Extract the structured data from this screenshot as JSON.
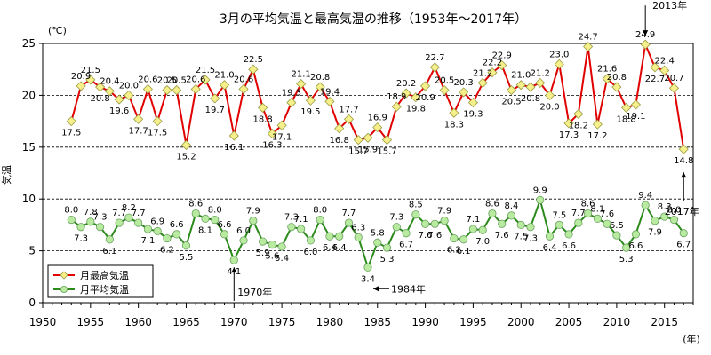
{
  "chart_data": {
    "type": "line",
    "title": "3月の平均気温と最高気温の推移（1953年～2017年）",
    "ylabel": "気温",
    "yunit": "(℃)",
    "xunit": "(年)",
    "xlim": [
      1950,
      2018
    ],
    "ylim": [
      0,
      25
    ],
    "xticks": [
      1950,
      1955,
      1960,
      1965,
      1970,
      1975,
      1980,
      1985,
      1990,
      1995,
      2000,
      2005,
      2010,
      2015
    ],
    "yticks": [
      0,
      5,
      10,
      15,
      20,
      25
    ],
    "grid": "dashed horizontal at 5, 10, 15, 20",
    "legend_position": "bottom-left",
    "x": [
      1953,
      1954,
      1955,
      1956,
      1957,
      1958,
      1959,
      1960,
      1961,
      1962,
      1963,
      1964,
      1965,
      1966,
      1967,
      1968,
      1969,
      1970,
      1971,
      1972,
      1973,
      1974,
      1975,
      1976,
      1977,
      1978,
      1979,
      1980,
      1981,
      1982,
      1983,
      1984,
      1985,
      1986,
      1987,
      1988,
      1989,
      1990,
      1991,
      1992,
      1993,
      1994,
      1995,
      1996,
      1997,
      1998,
      1999,
      2000,
      2001,
      2002,
      2003,
      2004,
      2005,
      2006,
      2007,
      2008,
      2009,
      2010,
      2011,
      2012,
      2013,
      2014,
      2015,
      2016,
      2017
    ],
    "series": [
      {
        "name": "月最高気温",
        "color": "#e00000",
        "marker_fill": "#f5f08c",
        "marker": "diamond",
        "values": [
          17.5,
          20.9,
          21.5,
          20.8,
          20.4,
          19.6,
          20.0,
          17.7,
          20.6,
          17.5,
          20.5,
          20.5,
          15.2,
          20.6,
          21.5,
          19.7,
          21.0,
          16.1,
          20.6,
          22.5,
          18.8,
          16.3,
          17.1,
          19.3,
          21.1,
          19.5,
          20.8,
          19.4,
          16.8,
          17.7,
          15.7,
          15.9,
          16.9,
          15.7,
          18.9,
          20.2,
          19.8,
          20.9,
          22.7,
          20.5,
          18.3,
          20.3,
          19.3,
          21.2,
          22.2,
          22.9,
          20.5,
          21.0,
          20.8,
          21.2,
          20.0,
          23.0,
          17.3,
          18.2,
          24.7,
          17.2,
          21.6,
          20.8,
          18.8,
          19.1,
          24.9,
          22.7,
          22.4,
          20.7,
          14.8
        ]
      },
      {
        "name": "月平均気温",
        "color": "#2a8a1a",
        "marker_fill": "#b8eaa0",
        "marker": "circle",
        "values": [
          8.0,
          7.3,
          7.8,
          7.3,
          6.1,
          7.7,
          8.2,
          7.7,
          7.1,
          6.9,
          6.2,
          6.6,
          5.5,
          8.6,
          8.1,
          8.0,
          6.6,
          4.1,
          6.0,
          7.9,
          5.9,
          5.6,
          5.4,
          7.3,
          7.1,
          6.0,
          8.0,
          6.4,
          6.4,
          7.7,
          6.3,
          3.4,
          5.8,
          5.3,
          7.3,
          6.7,
          8.5,
          7.6,
          7.6,
          7.9,
          6.2,
          6.1,
          7.1,
          7.0,
          8.6,
          7.6,
          8.4,
          7.5,
          7.3,
          9.9,
          6.4,
          7.5,
          6.6,
          7.7,
          8.6,
          8.1,
          7.6,
          6.5,
          5.3,
          6.6,
          9.4,
          7.9,
          8.3,
          8.0,
          6.7
        ]
      }
    ],
    "annotations": [
      {
        "text": "2013年",
        "year": 2013,
        "series": 0,
        "direction": "down"
      },
      {
        "text": "2017年",
        "year": 2017,
        "series": 0,
        "direction": "up"
      },
      {
        "text": "1970年",
        "year": 1970,
        "series": 1,
        "direction": "up"
      },
      {
        "text": "1984年",
        "year": 1984,
        "series": 1,
        "direction": "left"
      }
    ]
  }
}
